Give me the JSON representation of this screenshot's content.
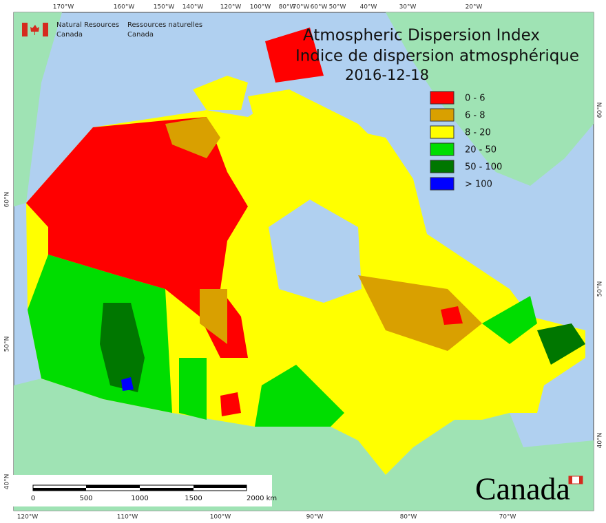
{
  "header": {
    "agency_en": [
      "Natural Resources",
      "Canada"
    ],
    "agency_fr": [
      "Ressources naturelles",
      "Canada"
    ]
  },
  "title": {
    "en": "Atmospheric Dispersion Index",
    "fr": "Indice de dispersion atmosphérique",
    "date": "2016-12-18"
  },
  "legend": [
    {
      "label": "0 - 6",
      "color": "#ff0000"
    },
    {
      "label": "6 - 8",
      "color": "#d9a000"
    },
    {
      "label": "8 - 20",
      "color": "#ffff00"
    },
    {
      "label": "20 - 50",
      "color": "#00dd00"
    },
    {
      "label": "50 - 100",
      "color": "#007700"
    },
    {
      "label": "> 100",
      "color": "#0000ff"
    }
  ],
  "graticule": {
    "top": [
      "170°W",
      "160°W",
      "150°W",
      "140°W",
      "120°W",
      "100°W",
      "80°W",
      "70°W",
      "60°W",
      "50°W",
      "40°W",
      "30°W",
      "20°W"
    ],
    "bottom": [
      "120°W",
      "110°W",
      "100°W",
      "90°W",
      "80°W",
      "70°W"
    ],
    "left": [
      "60°N",
      "50°N",
      "40°N"
    ],
    "right": [
      "60°N",
      "50°N",
      "40°N"
    ]
  },
  "scale_bar": {
    "labels": [
      "0",
      "500",
      "1000",
      "1500",
      "2000 km"
    ]
  },
  "wordmark": "Canada"
}
